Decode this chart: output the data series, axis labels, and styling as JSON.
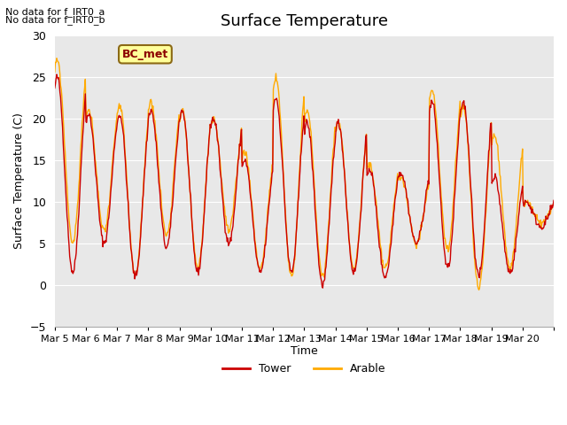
{
  "title": "Surface Temperature",
  "xlabel": "Time",
  "ylabel": "Surface Temperature (C)",
  "ylim": [
    -5,
    30
  ],
  "note1": "No data for f_IRT0_a",
  "note2": "No data for f_IRT0_b",
  "bc_label": "BC_met",
  "legend_tower": "Tower",
  "legend_arable": "Arable",
  "tower_color": "#cc0000",
  "arable_color": "#ffaa00",
  "bg_color": "#e8e8e8",
  "fig_bg": "#ffffff",
  "n_days": 16,
  "xtick_labels": [
    "Mar 5",
    "Mar 6",
    "Mar 7",
    "Mar 8",
    "Mar 9",
    "Mar 10",
    "Mar 11",
    "Mar 12",
    "Mar 13",
    "Mar 14",
    "Mar 15",
    "Mar 16",
    "Mar 17",
    "Mar 18",
    "Mar 19",
    "Mar 20",
    ""
  ],
  "daily_peaks_tower": [
    25,
    20.5,
    20.5,
    21,
    21,
    20,
    15,
    22.5,
    19.5,
    19.5,
    14,
    13.5,
    22,
    22,
    13,
    10
  ],
  "daily_peaks_arable": [
    27,
    21,
    21.5,
    22,
    21,
    20,
    16,
    24.8,
    21,
    19.5,
    14.5,
    13,
    23.5,
    21.5,
    18,
    9.8
  ],
  "daily_mins_tower": [
    1.5,
    5,
    1,
    4.5,
    1.5,
    5,
    1.5,
    1.5,
    0,
    1.5,
    1,
    5,
    2,
    1,
    1.5,
    7
  ],
  "daily_mins_arable": [
    5,
    6.5,
    1,
    6,
    2,
    6.5,
    2,
    1,
    1,
    2,
    2,
    5,
    4,
    -0.5,
    2,
    7.5
  ]
}
